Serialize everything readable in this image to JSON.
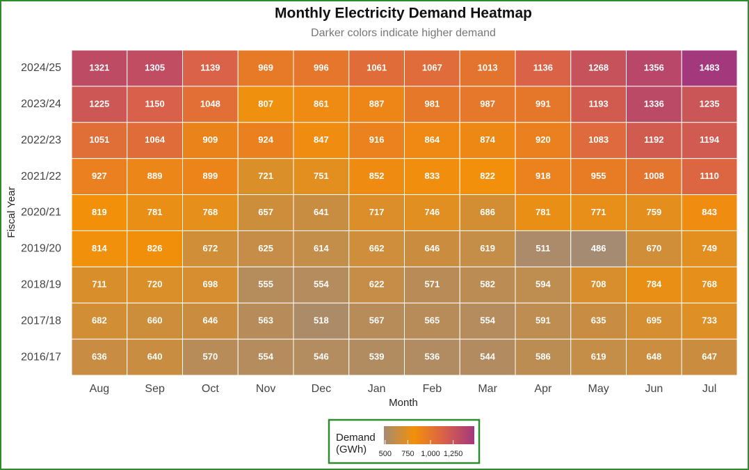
{
  "chart_data": {
    "type": "heatmap",
    "title": "Monthly Electricity Demand Heatmap",
    "subtitle": "Darker colors indicate higher demand",
    "x_label": "Month",
    "y_label": "Fiscal Year",
    "categories": [
      "Aug",
      "Sep",
      "Oct",
      "Nov",
      "Dec",
      "Jan",
      "Feb",
      "Mar",
      "Apr",
      "May",
      "Jun",
      "Jul"
    ],
    "y_categories": [
      "2024/25",
      "2023/24",
      "2022/23",
      "2021/22",
      "2020/21",
      "2019/20",
      "2018/19",
      "2017/18",
      "2016/17"
    ],
    "values": [
      [
        1321,
        1305,
        1139,
        969,
        996,
        1061,
        1067,
        1013,
        1136,
        1268,
        1356,
        1483
      ],
      [
        1225,
        1150,
        1048,
        807,
        861,
        887,
        981,
        987,
        991,
        1193,
        1336,
        1235
      ],
      [
        1051,
        1064,
        909,
        924,
        847,
        916,
        864,
        874,
        920,
        1083,
        1192,
        1194
      ],
      [
        927,
        889,
        899,
        721,
        751,
        852,
        833,
        822,
        918,
        955,
        1008,
        1110
      ],
      [
        819,
        781,
        768,
        657,
        641,
        717,
        746,
        686,
        781,
        771,
        759,
        843
      ],
      [
        814,
        826,
        672,
        625,
        614,
        662,
        646,
        619,
        511,
        486,
        670,
        749
      ],
      [
        711,
        720,
        698,
        555,
        554,
        622,
        571,
        582,
        594,
        708,
        784,
        768
      ],
      [
        682,
        660,
        646,
        563,
        518,
        567,
        565,
        554,
        591,
        635,
        695,
        733
      ],
      [
        636,
        640,
        570,
        554,
        546,
        539,
        536,
        544,
        586,
        619,
        648,
        647
      ]
    ],
    "legend_title": "Demand (GWh)",
    "clim": [
      486,
      1483
    ],
    "cticks": [
      500,
      750,
      {
        "value": 1000,
        "label": "1,000"
      },
      {
        "value": 1250,
        "label": "1,250"
      }
    ],
    "colors": [
      "#a58b72",
      "#f2900a",
      "#d9604a",
      "#a3387d"
    ]
  }
}
